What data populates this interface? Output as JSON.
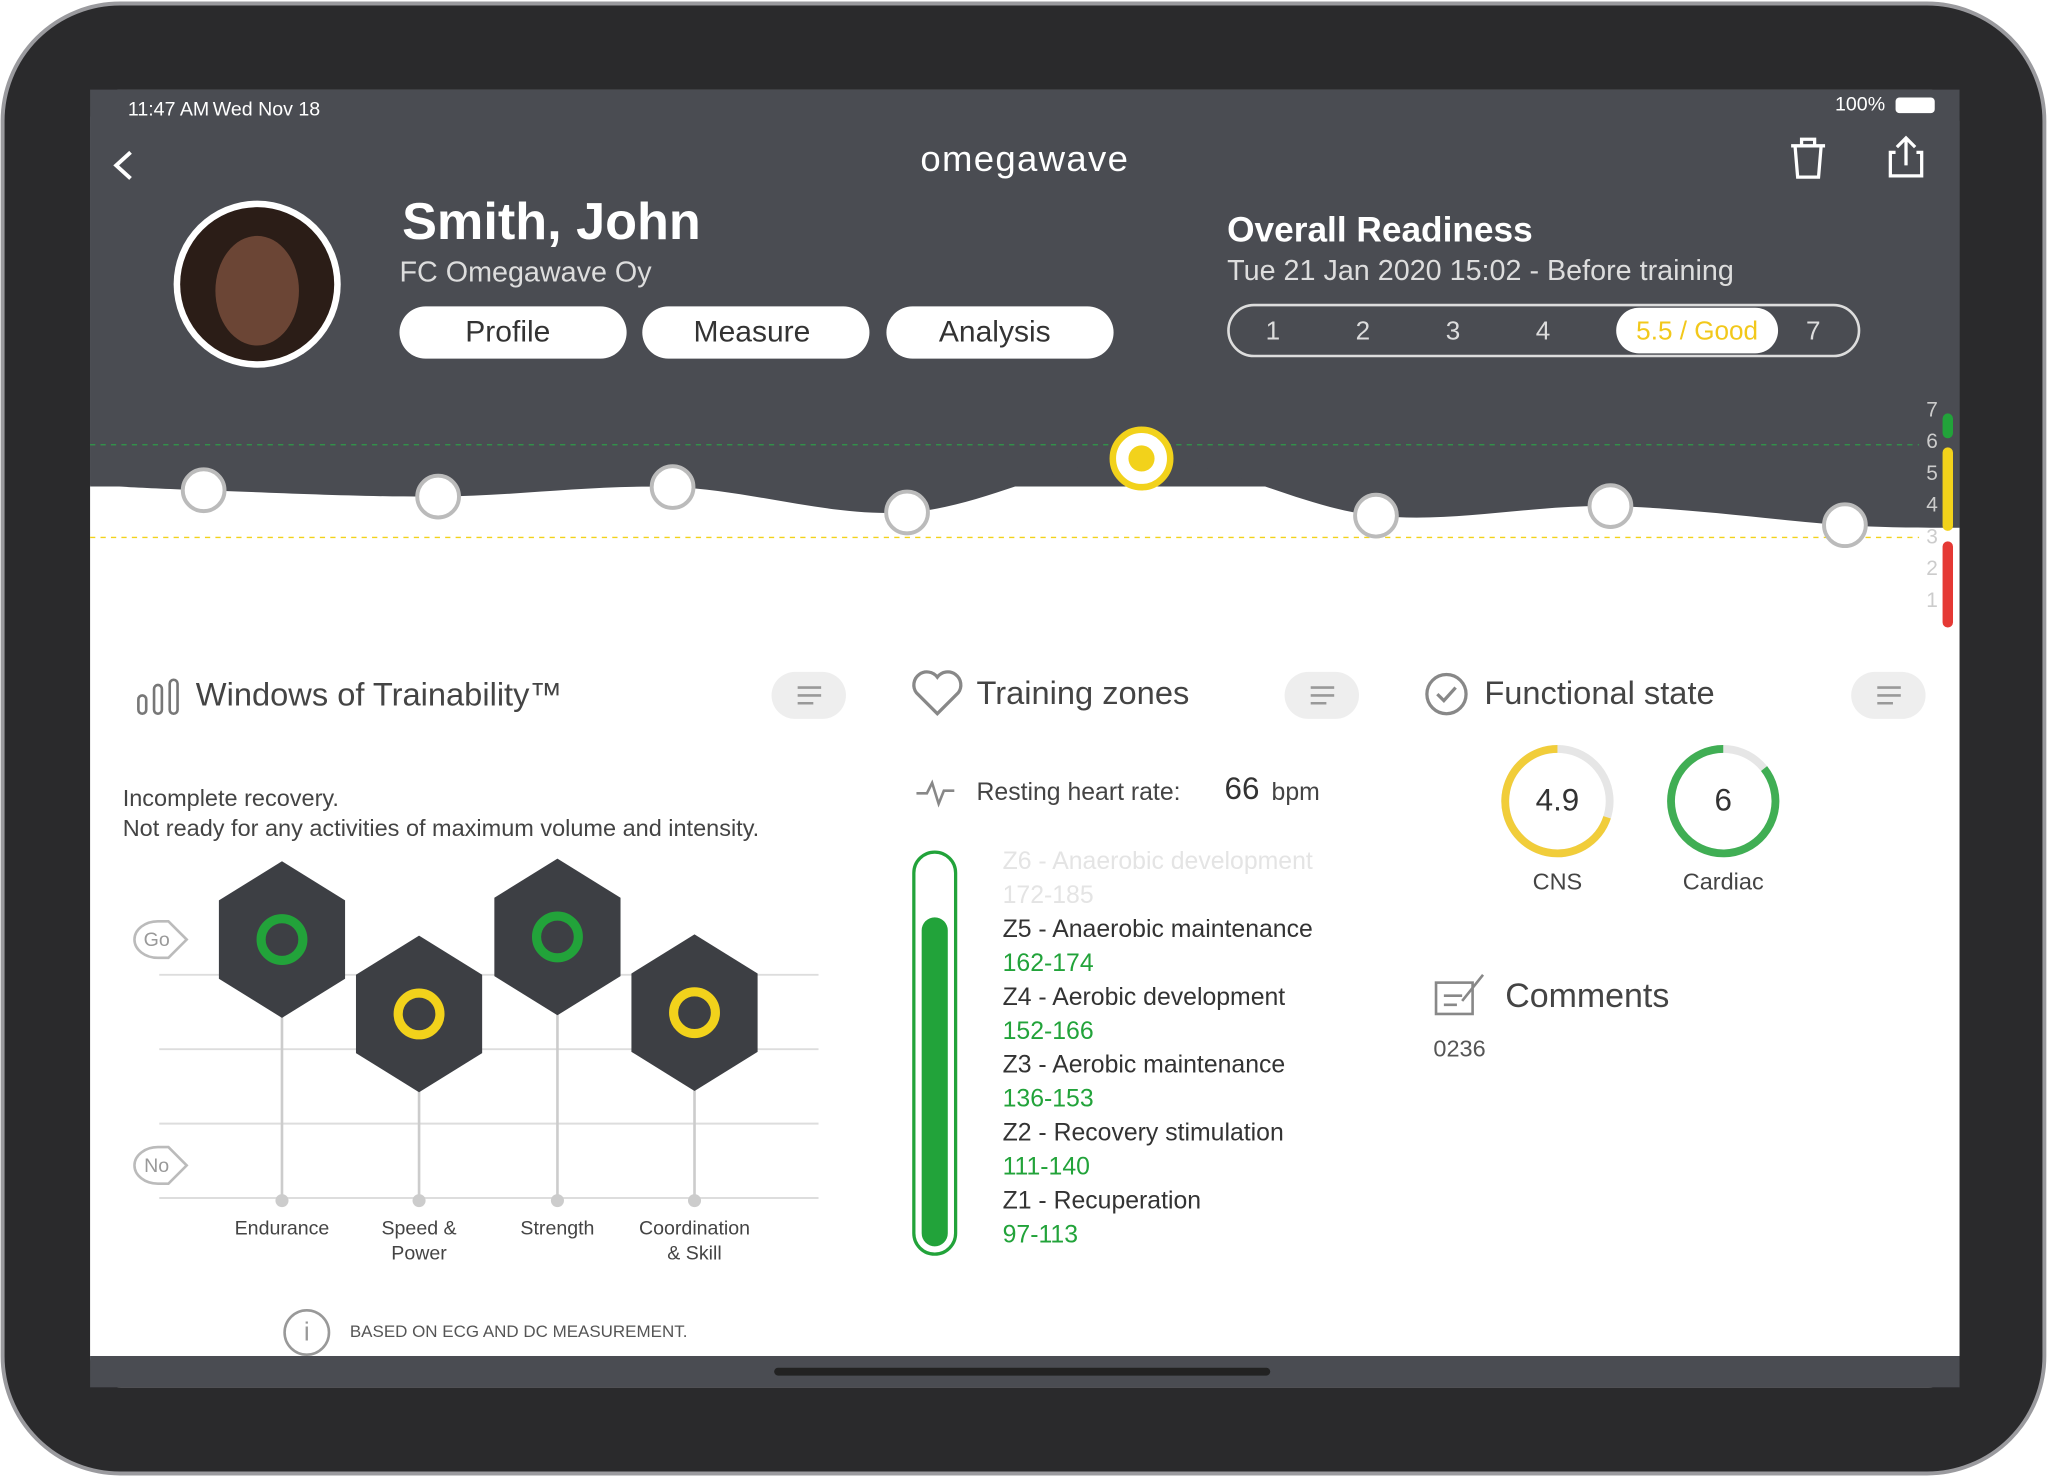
{
  "status_bar": {
    "time": "11:47 AM",
    "date": "Wed Nov 18",
    "battery": "100%"
  },
  "header": {
    "logo": "omegawave"
  },
  "athlete": {
    "name": "Smith, John",
    "team": "FC Omegawave Oy",
    "tabs": [
      "Profile",
      "Measure",
      "Analysis"
    ]
  },
  "readiness": {
    "title": "Overall Readiness",
    "subtitle": "Tue 21 Jan 2020 15:02 - Before training",
    "scale": [
      "1",
      "2",
      "3",
      "4",
      "5.5 / Good",
      "7"
    ]
  },
  "timeline": {
    "type": "line",
    "values": [
      4.5,
      4.3,
      4.6,
      3.8,
      5.5,
      3.7,
      4.0,
      3.4
    ],
    "ylim": [
      1,
      7
    ],
    "yticks": [
      1,
      2,
      3,
      4,
      5,
      6,
      7
    ]
  },
  "trainability": {
    "title": "Windows of Trainability™",
    "description": [
      "Incomplete recovery.",
      "Not ready for any activities of maximum volume and intensity."
    ],
    "go": "Go",
    "no": "No",
    "categories": [
      [
        "Endurance"
      ],
      [
        "Speed &",
        "Power"
      ],
      [
        "Strength"
      ],
      [
        "Coordination",
        "& Skill"
      ]
    ],
    "footnote": "BASED ON ECG AND DC MEASUREMENT."
  },
  "training_zones": {
    "title": "Training zones",
    "resting_hr_label": "Resting heart rate:",
    "resting_hr": 66,
    "resting_hr_unit": "bpm",
    "zones": [
      {
        "name": "Z6 - Anaerobic development",
        "range": "172-185"
      },
      {
        "name": "Z5 - Anaerobic maintenance",
        "range": "162-174"
      },
      {
        "name": "Z4 - Aerobic development",
        "range": "152-166"
      },
      {
        "name": "Z3 - Aerobic maintenance",
        "range": "136-153"
      },
      {
        "name": "Z2 - Recovery stimulation",
        "range": "111-140"
      },
      {
        "name": "Z1 - Recuperation",
        "range": "97-113"
      }
    ]
  },
  "functional_state": {
    "title": "Functional state",
    "gauges": [
      {
        "label": "CNS",
        "value": 4.9,
        "color": "#f2c81b"
      },
      {
        "label": "Cardiac",
        "value": 6,
        "color": "#22a33a"
      }
    ],
    "comments_title": "Comments",
    "comments": "0236"
  }
}
